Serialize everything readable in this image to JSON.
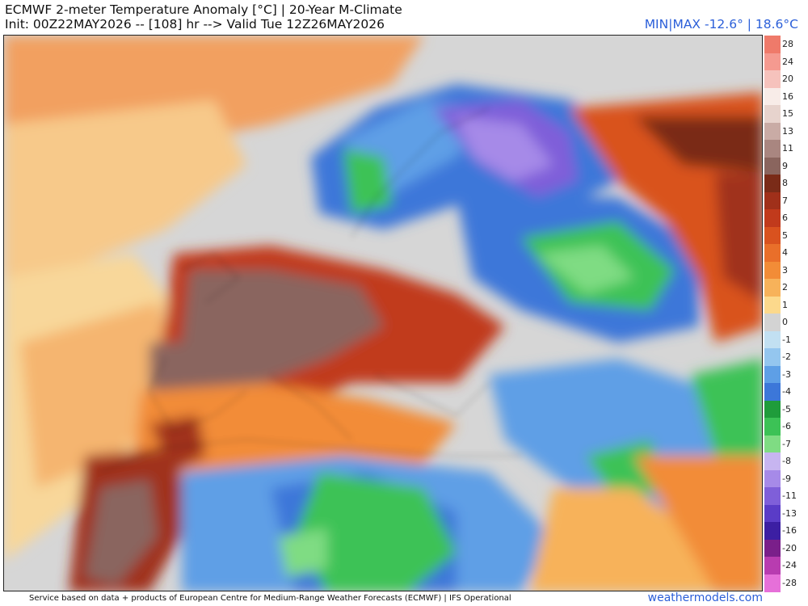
{
  "header": {
    "title": "ECMWF 2-meter Temperature Anomaly [°C] | 20-Year M-Climate",
    "subtitle": "Init: 00Z22MAY2026 -- [108] hr --> Valid Tue 12Z26MAY2026",
    "minmax": "MIN|MAX -12.6° | 18.6°C"
  },
  "legend": {
    "ticks": [
      "28",
      "24",
      "20",
      "16",
      "15",
      "13",
      "11",
      "9",
      "8",
      "7",
      "6",
      "5",
      "4",
      "3",
      "2",
      "1",
      "0",
      "-1",
      "-2",
      "-3",
      "-4",
      "-5",
      "-6",
      "-7",
      "-8",
      "-9",
      "-11",
      "-13",
      "-16",
      "-20",
      "-24",
      "-28"
    ],
    "colors": [
      "#ef7a6a",
      "#f59a90",
      "#f6c2bc",
      "#f8ece8",
      "#e7d3cd",
      "#c9aba5",
      "#a98680",
      "#8a655e",
      "#7a2b18",
      "#a0301a",
      "#c13a1c",
      "#d9521f",
      "#e96f2a",
      "#f28c37",
      "#f7b25a",
      "#fcd98c",
      "#d3d3d3",
      "#c2e0f2",
      "#94c6ef",
      "#5e9fe6",
      "#3c77d9",
      "#1f9c3b",
      "#3cc256",
      "#7fdc83",
      "#c7b5f0",
      "#a68ae8",
      "#7f5fd9",
      "#5a3cc7",
      "#3c1fa3",
      "#7a1f8a",
      "#b83cb0",
      "#e670d9"
    ],
    "colors_note": ""
  },
  "footer": {
    "credit": "Service based on data + products of European Centre for Medium-Range Weather Forecasts (ECMWF) | IFS Operational",
    "brand": "weathermodels.com"
  }
}
